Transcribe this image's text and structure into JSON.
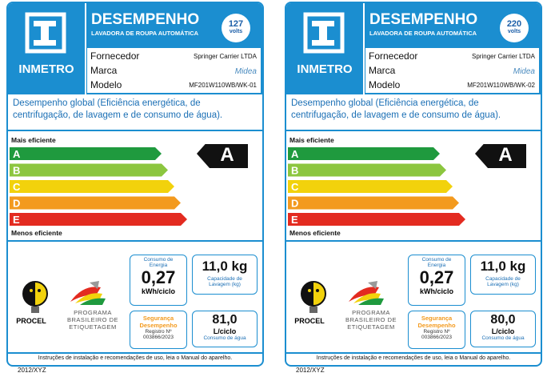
{
  "labels": [
    {
      "brand_logo": "INMETRO",
      "title": "DESEMPENHO",
      "subtitle": "LAVADORA DE ROUPA AUTOMÁTICA",
      "voltage": "127",
      "voltage_unit": "volts",
      "rows": [
        [
          "Fornecedor",
          "Springer Carrier LTDA"
        ],
        [
          "Marca",
          "Midea"
        ],
        [
          "Modelo",
          "MF201W110WB/WK-01"
        ]
      ],
      "description": "Desempenho global (Eficiência energética, de centrifugação, de lavagem e de consumo de água).",
      "most_efficient": "Mais eficiente",
      "classes": [
        "A",
        "B",
        "C",
        "D",
        "E"
      ],
      "rating": "A",
      "least_efficient": "Menos eficiente",
      "procel": "PROCEL",
      "program": [
        "PROGRAMA",
        "BRASILEIRO DE",
        "ETIQUETAGEM"
      ],
      "energy": {
        "label": "Consumo de Energia",
        "value": "0,27",
        "unit": "kWh/ciclo"
      },
      "capacity": {
        "value": "11,0 kg",
        "label": "Capacidade de Lavagem (kg)"
      },
      "safety": {
        "title": "Segurança Desempenho",
        "registry": "Registro Nº",
        "number": "003866/2023"
      },
      "water": {
        "value": "81,0",
        "unit": "L/ciclo",
        "label": "Consumo de água"
      },
      "instructions": "Instruções de instalação e recomendações de uso, leia o Manual do aparelho.",
      "code": "2012/XYZ"
    },
    {
      "brand_logo": "INMETRO",
      "title": "DESEMPENHO",
      "subtitle": "LAVADORA DE ROUPA AUTOMÁTICA",
      "voltage": "220",
      "voltage_unit": "volts",
      "rows": [
        [
          "Fornecedor",
          "Springer Carrier LTDA"
        ],
        [
          "Marca",
          "Midea"
        ],
        [
          "Modelo",
          "MF201W110WB/WK-02"
        ]
      ],
      "description": "Desempenho global (Eficiência energética, de centrifugação, de lavagem e de consumo de água).",
      "most_efficient": "Mais eficiente",
      "classes": [
        "A",
        "B",
        "C",
        "D",
        "E"
      ],
      "rating": "A",
      "least_efficient": "Menos eficiente",
      "procel": "PROCEL",
      "program": [
        "PROGRAMA",
        "BRASILEIRO DE",
        "ETIQUETAGEM"
      ],
      "energy": {
        "label": "Consumo de Energia",
        "value": "0,27",
        "unit": "kWh/ciclo"
      },
      "capacity": {
        "value": "11,0 kg",
        "label": "Capacidade de Lavagem (kg)"
      },
      "safety": {
        "title": "Segurança Desempenho",
        "registry": "Registro Nº",
        "number": "003866/2023"
      },
      "water": {
        "value": "80,0",
        "unit": "L/ciclo",
        "label": "Consumo de água"
      },
      "instructions": "Instruções de instalação e recomendações de uso, leia o Manual do aparelho.",
      "code": "2012/XYZ"
    }
  ]
}
